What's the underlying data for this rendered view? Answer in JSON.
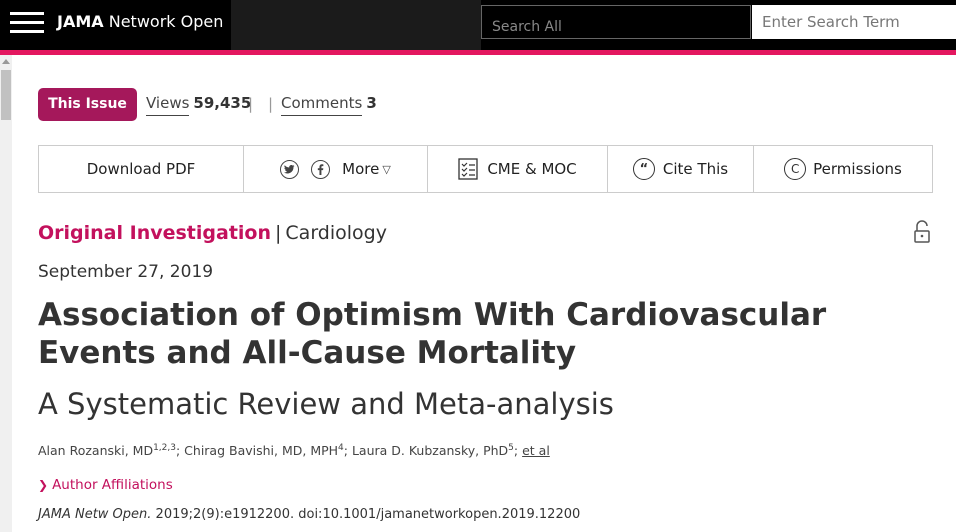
{
  "header": {
    "brand_bold": "JAMA",
    "brand_rest": "Network Open",
    "search_scope": "Search All",
    "search_placeholder": "Enter Search Term"
  },
  "issue_row": {
    "this_issue_label": "This Issue",
    "views_label": "Views",
    "views_count": "59,435",
    "separator": "|",
    "comments_label": "Comments",
    "comments_count": "3"
  },
  "toolbar": {
    "download_label": "Download PDF",
    "twitter_icon": "twitter-icon",
    "facebook_icon": "facebook-icon",
    "more_label": "More",
    "cme_label": "CME & MOC",
    "cite_label": "Cite This",
    "permissions_label": "Permissions"
  },
  "article": {
    "type": "Original Investigation",
    "type_separator": "|",
    "subject": "Cardiology",
    "date": "September 27, 2019",
    "title": "Association of Optimism With Cardiovascular Events and All-Cause Mortality",
    "subtitle": "A Systematic Review and Meta-analysis",
    "authors": [
      {
        "name": "Alan Rozanski, MD",
        "sup": "1,2,3"
      },
      {
        "name": "Chirag Bavishi, MD, MPH",
        "sup": "4"
      },
      {
        "name": "Laura D. Kubzansky, PhD",
        "sup": "5"
      }
    ],
    "et_al": "et al",
    "affiliations_label": "Author Affiliations",
    "citation_journal": "JAMA Netw Open.",
    "citation_rest": " 2019;2(9):e1912200. doi:10.1001/jamanetworkopen.2019.12200"
  },
  "colors": {
    "accent": "#e3175f",
    "issue_button": "#a5185b",
    "type_link": "#c3115d"
  }
}
